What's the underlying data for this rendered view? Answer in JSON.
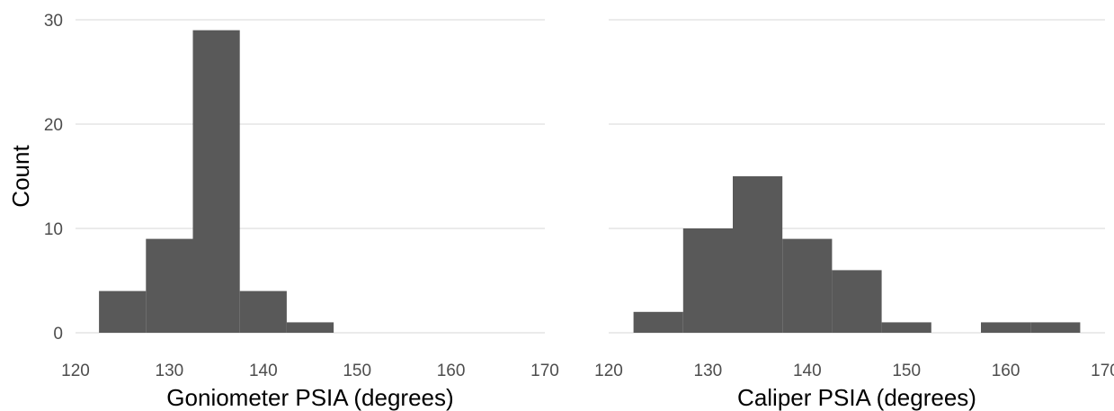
{
  "chart_data": [
    {
      "type": "bar",
      "xlabel": "Goniometer PSIA (degrees)",
      "ylabel": "Count",
      "xlim": [
        120,
        170
      ],
      "ylim": [
        0,
        30
      ],
      "xticks": [
        "120",
        "130",
        "140",
        "150",
        "160",
        "170"
      ],
      "yticks": [
        "0",
        "10",
        "20",
        "30"
      ],
      "bin_width": 5,
      "bins": [
        {
          "x0": 122.5,
          "x1": 127.5,
          "count": 4
        },
        {
          "x0": 127.5,
          "x1": 132.5,
          "count": 9
        },
        {
          "x0": 132.5,
          "x1": 137.5,
          "count": 29
        },
        {
          "x0": 137.5,
          "x1": 142.5,
          "count": 4
        },
        {
          "x0": 142.5,
          "x1": 147.5,
          "count": 1
        }
      ],
      "bar_color": "#595959"
    },
    {
      "type": "bar",
      "xlabel": "Caliper PSIA (degrees)",
      "ylabel": "",
      "xlim": [
        120,
        170
      ],
      "ylim": [
        0,
        30
      ],
      "xticks": [
        "120",
        "130",
        "140",
        "150",
        "160",
        "170"
      ],
      "yticks": [],
      "bin_width": 5,
      "bins": [
        {
          "x0": 122.5,
          "x1": 127.5,
          "count": 2
        },
        {
          "x0": 127.5,
          "x1": 132.5,
          "count": 10
        },
        {
          "x0": 132.5,
          "x1": 137.5,
          "count": 15
        },
        {
          "x0": 137.5,
          "x1": 142.5,
          "count": 9
        },
        {
          "x0": 142.5,
          "x1": 147.5,
          "count": 6
        },
        {
          "x0": 147.5,
          "x1": 152.5,
          "count": 1
        },
        {
          "x0": 157.5,
          "x1": 162.5,
          "count": 1
        },
        {
          "x0": 162.5,
          "x1": 167.5,
          "count": 1
        }
      ],
      "bar_color": "#595959"
    }
  ]
}
